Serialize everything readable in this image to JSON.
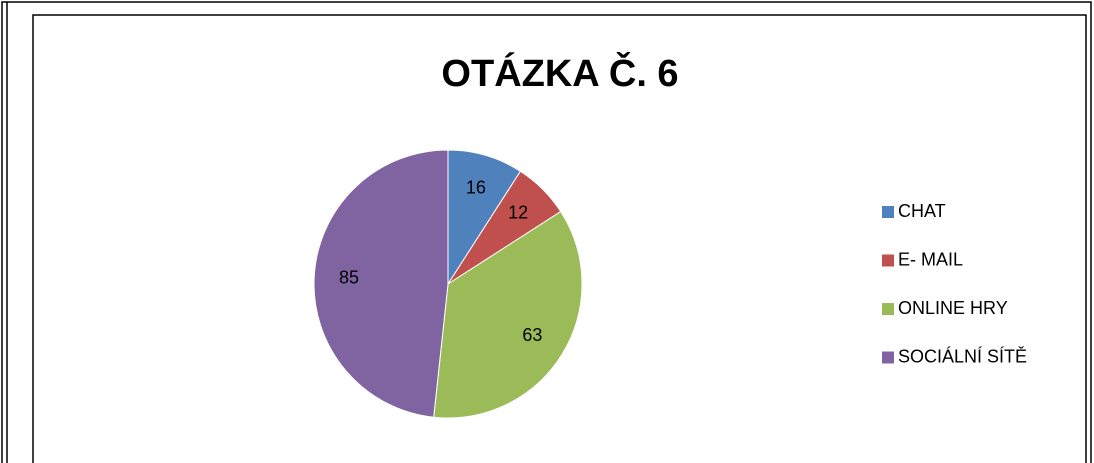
{
  "chart_data": {
    "type": "pie",
    "title": "OTÁZKA Č. 6",
    "categories": [
      "CHAT",
      "E- MAIL",
      "ONLINE HRY",
      "SOCIÁLNÍ SÍTĚ"
    ],
    "values": [
      16,
      12,
      63,
      85
    ],
    "colors": [
      "#4f81bd",
      "#c0504d",
      "#9bbb59",
      "#8064a2"
    ],
    "legend": "right"
  }
}
